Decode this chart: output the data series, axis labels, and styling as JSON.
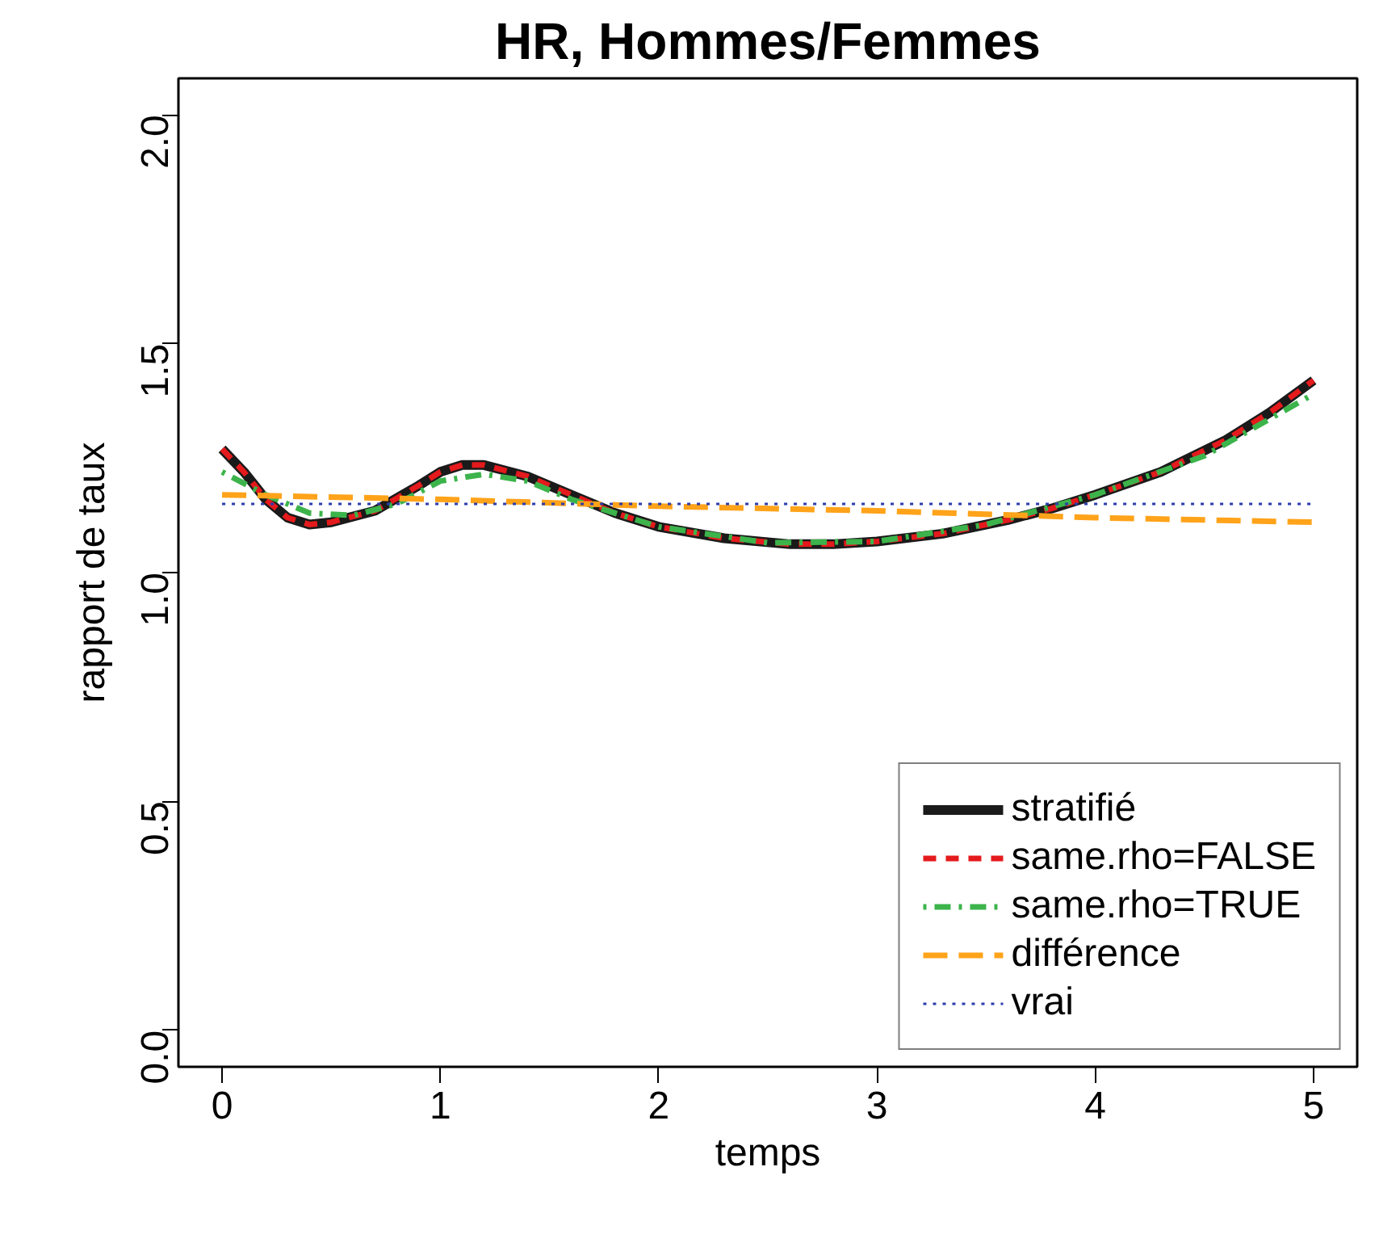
{
  "chart_data": {
    "type": "line",
    "title": "HR, Hommes/Femmes",
    "xlabel": "temps",
    "ylabel": "rapport de taux",
    "xlim": [
      -0.2,
      5.2
    ],
    "ylim": [
      -0.08,
      2.08
    ],
    "xticks": [
      0,
      1,
      2,
      3,
      4,
      5
    ],
    "yticks": [
      {
        "value": 0,
        "label": "0.0"
      },
      {
        "value": 0.5,
        "label": "0.5"
      },
      {
        "value": 1,
        "label": "1.0"
      },
      {
        "value": 1.5,
        "label": "1.5"
      },
      {
        "value": 2,
        "label": "2.0"
      }
    ],
    "grid": false,
    "legend": "bottom right",
    "series": [
      {
        "name": "stratifié",
        "color": "#1a1a1a",
        "line_style": "solid",
        "x": [
          0,
          0.1,
          0.2,
          0.3,
          0.4,
          0.5,
          0.7,
          0.9,
          1.0,
          1.1,
          1.2,
          1.4,
          1.6,
          1.8,
          2.0,
          2.3,
          2.6,
          2.8,
          3.0,
          3.3,
          3.6,
          3.8,
          4.0,
          4.3,
          4.6,
          4.8,
          5.0
        ],
        "values": [
          1.27,
          1.22,
          1.16,
          1.12,
          1.105,
          1.11,
          1.135,
          1.19,
          1.22,
          1.235,
          1.235,
          1.21,
          1.17,
          1.13,
          1.1,
          1.075,
          1.062,
          1.062,
          1.068,
          1.085,
          1.115,
          1.14,
          1.17,
          1.22,
          1.29,
          1.35,
          1.42
        ]
      },
      {
        "name": "same.rho=FALSE",
        "color": "#e41a1c",
        "line_style": "dashed",
        "x": [
          0,
          0.1,
          0.2,
          0.3,
          0.4,
          0.5,
          0.7,
          0.9,
          1.0,
          1.1,
          1.2,
          1.4,
          1.6,
          1.8,
          2.0,
          2.3,
          2.6,
          2.8,
          3.0,
          3.3,
          3.6,
          3.8,
          4.0,
          4.3,
          4.6,
          4.8,
          5.0
        ],
        "values": [
          1.27,
          1.22,
          1.16,
          1.12,
          1.105,
          1.11,
          1.135,
          1.19,
          1.22,
          1.235,
          1.235,
          1.21,
          1.17,
          1.13,
          1.1,
          1.075,
          1.062,
          1.062,
          1.068,
          1.085,
          1.115,
          1.14,
          1.17,
          1.22,
          1.29,
          1.35,
          1.42
        ]
      },
      {
        "name": "same.rho=TRUE",
        "color": "#3cb44b",
        "line_style": "dashdot",
        "x": [
          0,
          0.2,
          0.4,
          0.6,
          0.8,
          1.0,
          1.2,
          1.4,
          1.6,
          2.0,
          2.5,
          3.0,
          3.5,
          4.0,
          4.5,
          5.0
        ],
        "values": [
          1.22,
          1.17,
          1.13,
          1.125,
          1.15,
          1.2,
          1.215,
          1.2,
          1.16,
          1.1,
          1.065,
          1.068,
          1.105,
          1.17,
          1.255,
          1.39
        ]
      },
      {
        "name": "différence",
        "color": "#ffa31a",
        "line_style": "longdash",
        "x": [
          0,
          1,
          2,
          3,
          4,
          5
        ],
        "values": [
          1.17,
          1.16,
          1.145,
          1.135,
          1.12,
          1.11
        ]
      },
      {
        "name": "vrai",
        "color": "#2b3cad",
        "line_style": "dotted",
        "x": [
          0,
          5
        ],
        "values": [
          1.15,
          1.15
        ]
      }
    ]
  }
}
